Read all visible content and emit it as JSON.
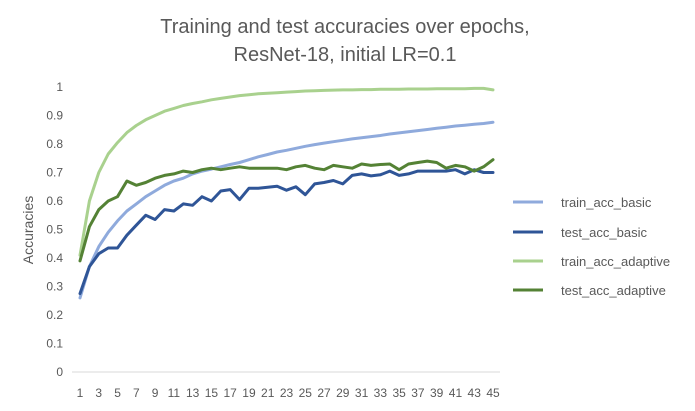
{
  "chart_data": {
    "type": "line",
    "title_line1": "Training and test accuracies over epochs,",
    "title_line2": "ResNet-18, initial LR=0.1",
    "xlabel": "",
    "ylabel": "Accuracies",
    "ylim": [
      0,
      1
    ],
    "yticks": [
      "0",
      "0.1",
      "0.2",
      "0.3",
      "0.4",
      "0.5",
      "0.6",
      "0.7",
      "0.8",
      "0.9",
      "1"
    ],
    "x": [
      1,
      2,
      3,
      4,
      5,
      6,
      7,
      8,
      9,
      10,
      11,
      12,
      13,
      14,
      15,
      16,
      17,
      18,
      19,
      20,
      21,
      22,
      23,
      24,
      25,
      26,
      27,
      28,
      29,
      30,
      31,
      32,
      33,
      34,
      35,
      36,
      37,
      38,
      39,
      40,
      41,
      42,
      43,
      44,
      45
    ],
    "xtick_labels": [
      "1",
      "3",
      "5",
      "7",
      "9",
      "11",
      "13",
      "15",
      "17",
      "19",
      "21",
      "23",
      "25",
      "27",
      "29",
      "31",
      "33",
      "35",
      "37",
      "39",
      "41",
      "43",
      "45"
    ],
    "grid": false,
    "legend_position": "right",
    "series": [
      {
        "name": "train_acc_basic",
        "color": "#8faadc",
        "values": [
          0.26,
          0.37,
          0.44,
          0.49,
          0.53,
          0.565,
          0.59,
          0.615,
          0.635,
          0.655,
          0.67,
          0.68,
          0.695,
          0.705,
          0.712,
          0.72,
          0.728,
          0.735,
          0.745,
          0.755,
          0.763,
          0.772,
          0.778,
          0.785,
          0.792,
          0.798,
          0.803,
          0.808,
          0.813,
          0.818,
          0.822,
          0.826,
          0.83,
          0.835,
          0.839,
          0.843,
          0.847,
          0.851,
          0.855,
          0.859,
          0.863,
          0.866,
          0.869,
          0.872,
          0.876
        ]
      },
      {
        "name": "test_acc_basic",
        "color": "#2f5597",
        "values": [
          0.275,
          0.37,
          0.415,
          0.435,
          0.435,
          0.48,
          0.515,
          0.55,
          0.535,
          0.57,
          0.565,
          0.59,
          0.585,
          0.615,
          0.6,
          0.635,
          0.64,
          0.605,
          0.645,
          0.645,
          0.648,
          0.652,
          0.638,
          0.65,
          0.622,
          0.66,
          0.665,
          0.672,
          0.66,
          0.69,
          0.695,
          0.688,
          0.692,
          0.705,
          0.69,
          0.695,
          0.705,
          0.705,
          0.705,
          0.705,
          0.71,
          0.695,
          0.71,
          0.7,
          0.7
        ]
      },
      {
        "name": "train_acc_adaptive",
        "color": "#a9d18e",
        "values": [
          0.41,
          0.6,
          0.7,
          0.765,
          0.805,
          0.84,
          0.865,
          0.885,
          0.9,
          0.915,
          0.925,
          0.935,
          0.942,
          0.948,
          0.955,
          0.96,
          0.965,
          0.97,
          0.973,
          0.976,
          0.978,
          0.98,
          0.982,
          0.984,
          0.986,
          0.987,
          0.988,
          0.989,
          0.99,
          0.99,
          0.991,
          0.991,
          0.992,
          0.992,
          0.992,
          0.993,
          0.993,
          0.993,
          0.994,
          0.994,
          0.994,
          0.994,
          0.995,
          0.995,
          0.99
        ]
      },
      {
        "name": "test_acc_adaptive",
        "color": "#548235",
        "values": [
          0.39,
          0.51,
          0.57,
          0.6,
          0.615,
          0.67,
          0.655,
          0.665,
          0.68,
          0.69,
          0.695,
          0.705,
          0.7,
          0.71,
          0.715,
          0.71,
          0.715,
          0.72,
          0.715,
          0.715,
          0.715,
          0.715,
          0.71,
          0.72,
          0.725,
          0.715,
          0.71,
          0.725,
          0.72,
          0.715,
          0.73,
          0.725,
          0.728,
          0.73,
          0.71,
          0.73,
          0.735,
          0.74,
          0.735,
          0.715,
          0.725,
          0.72,
          0.705,
          0.72,
          0.745
        ]
      }
    ]
  }
}
